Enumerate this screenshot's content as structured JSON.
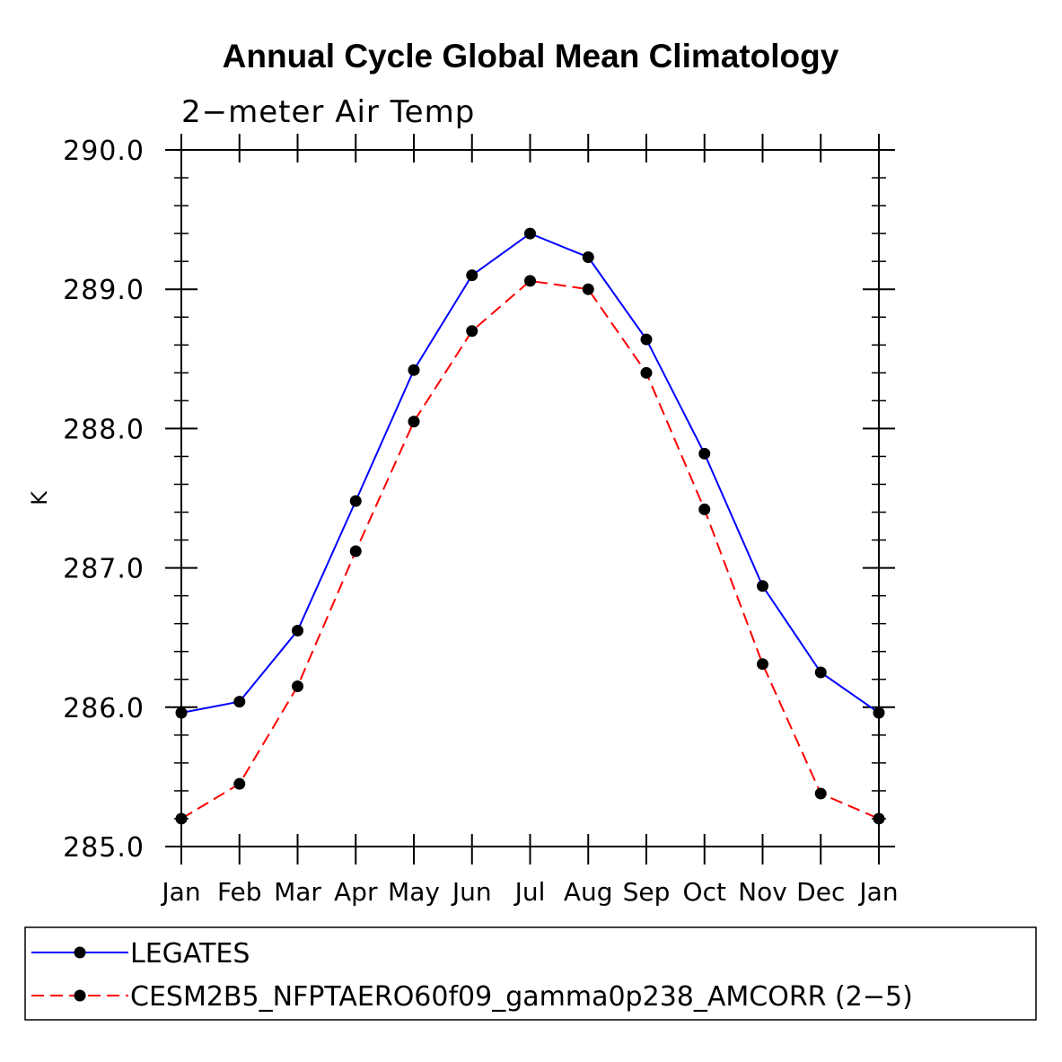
{
  "title": "Annual Cycle Global Mean Climatology",
  "subtitle": "2−meter Air Temp",
  "chart_data": {
    "type": "line",
    "title": "Annual Cycle Global Mean Climatology",
    "subtitle": "2−meter Air Temp",
    "xlabel": "",
    "ylabel": "K",
    "categories": [
      "Jan",
      "Feb",
      "Mar",
      "Apr",
      "May",
      "Jun",
      "Jul",
      "Aug",
      "Sep",
      "Oct",
      "Nov",
      "Dec",
      "Jan"
    ],
    "ylim": [
      285.0,
      290.0
    ],
    "yticks": [
      285.0,
      286.0,
      287.0,
      288.0,
      289.0,
      290.0
    ],
    "ytick_labels": [
      "285.0",
      "286.0",
      "287.0",
      "288.0",
      "289.0",
      "290.0"
    ],
    "legend_position": "bottom",
    "series": [
      {
        "name": "LEGATES",
        "color": "#0000ff",
        "style": "solid",
        "marker": "circle",
        "values": [
          285.96,
          286.04,
          286.55,
          287.48,
          288.42,
          289.1,
          289.4,
          289.23,
          288.64,
          287.82,
          286.87,
          286.25,
          285.96
        ]
      },
      {
        "name": "CESM2B5_NFPTAERO60f09_gamma0p238_AMCORR (2−5)",
        "color": "#ff0000",
        "style": "dashed",
        "marker": "circle",
        "values": [
          285.2,
          285.45,
          286.15,
          287.12,
          288.05,
          288.7,
          289.06,
          289.0,
          288.4,
          287.42,
          286.31,
          285.38,
          285.2
        ]
      }
    ]
  }
}
